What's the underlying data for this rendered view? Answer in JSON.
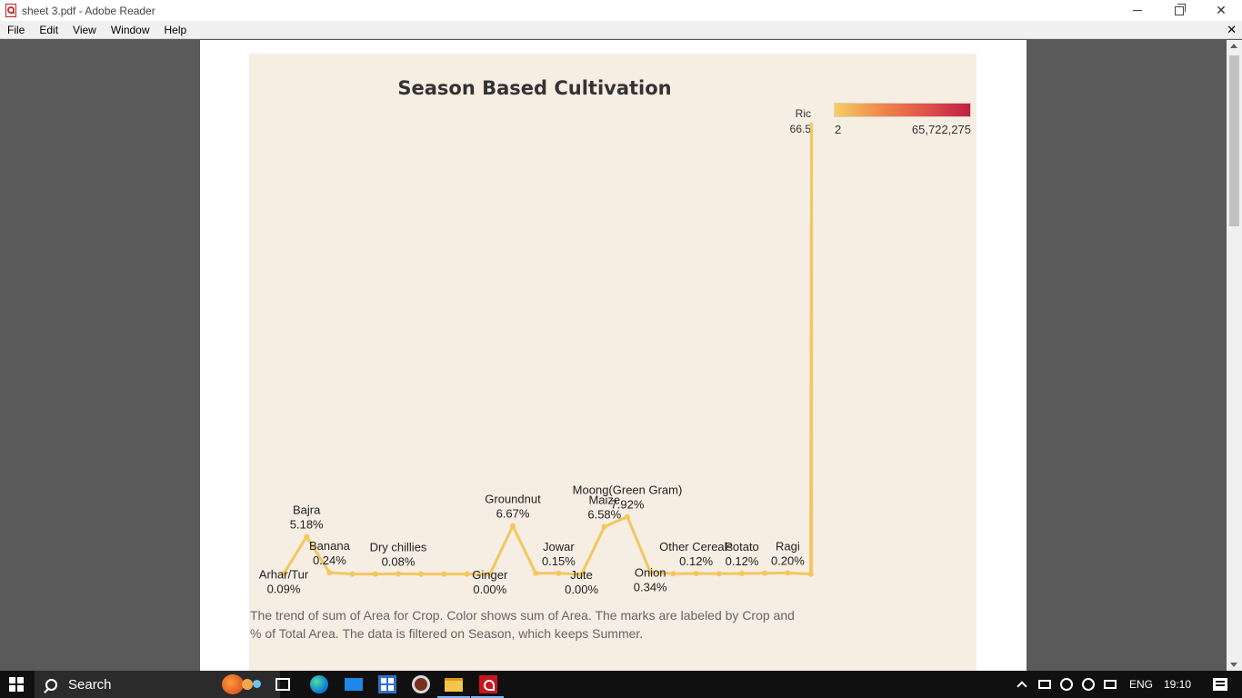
{
  "window": {
    "title": "sheet 3.pdf - Adobe Reader"
  },
  "menu": {
    "items": [
      "File",
      "Edit",
      "View",
      "Window",
      "Help"
    ]
  },
  "chart": {
    "legend_title": "Ric",
    "legend_value": "66.5",
    "legend_min": "2",
    "legend_max": "65,722,275",
    "colors": {
      "line": "#f3c75f",
      "background": "#f6ede3",
      "gradient_start": "#f4cf63",
      "gradient_end": "#c01e44"
    },
    "caption_line1": "The trend of sum of Area for Crop.  Color shows sum of Area.  The marks are labeled by Crop and",
    "caption_line2": "% of Total Area. The data is filtered on Season, which keeps Summer."
  },
  "chart_data": {
    "type": "line",
    "title": "Season Based Cultivation",
    "metric": "% of Total Area",
    "x": [
      "Arhar/Tur",
      "Bajra",
      "Banana",
      "",
      "",
      "Dry chillies",
      "",
      "",
      "",
      "Ginger",
      "Groundnut",
      "",
      "Jowar",
      "Jute",
      "Maize",
      "Moong(Green Gram)",
      "",
      "",
      "Other Cereals",
      "",
      "Potato",
      "",
      "Ragi",
      ""
    ],
    "y": [
      0.09,
      5.18,
      0.24,
      0.05,
      0.05,
      0.08,
      0.05,
      0.05,
      0.05,
      0.0,
      6.67,
      0.15,
      0.15,
      0.0,
      6.58,
      7.92,
      0.34,
      0.1,
      0.12,
      0.1,
      0.12,
      0.15,
      0.2,
      0.05
    ],
    "labels": [
      {
        "index": 0,
        "name": "Arhar/Tur",
        "value": "0.09%",
        "pos": "below"
      },
      {
        "index": 1,
        "name": "Bajra",
        "value": "5.18%",
        "pos": "above"
      },
      {
        "index": 2,
        "name": "Banana",
        "value": "0.24%",
        "pos": "above"
      },
      {
        "index": 5,
        "name": "Dry chillies",
        "value": "0.08%",
        "pos": "above"
      },
      {
        "index": 9,
        "name": "Ginger",
        "value": "0.00%",
        "pos": "below"
      },
      {
        "index": 10,
        "name": "Groundnut",
        "value": "6.67%",
        "pos": "above"
      },
      {
        "index": 12,
        "name": "Jowar",
        "value": "0.15%",
        "pos": "above"
      },
      {
        "index": 13,
        "name": "Jute",
        "value": "0.00%",
        "pos": "below"
      },
      {
        "index": 14,
        "name": "Maize",
        "value": "6.58%",
        "pos": "above"
      },
      {
        "index": 15,
        "name": "Moong(Green Gram)",
        "value": "7.92%",
        "pos": "above"
      },
      {
        "index": 16,
        "name": "Onion",
        "value": "0.34%",
        "pos": "below"
      },
      {
        "index": 18,
        "name": "Other Cereals",
        "value": "0.12%",
        "pos": "above"
      },
      {
        "index": 20,
        "name": "Potato",
        "value": "0.12%",
        "pos": "above"
      },
      {
        "index": 22,
        "name": "Ragi",
        "value": "0.20%",
        "pos": "above"
      }
    ],
    "tail_value": 62.0,
    "ylim": [
      0,
      70
    ],
    "grid": false,
    "legend": "top-right"
  },
  "taskbar": {
    "search_placeholder": "Search",
    "language": "ENG",
    "time": "19:10"
  },
  "icons": [
    "acrobat-icon",
    "minimize-icon",
    "restore-icon",
    "close-icon",
    "windows-start-icon",
    "search-icon",
    "task-view-icon",
    "edge-icon",
    "mail-icon",
    "store-icon",
    "media-player-icon",
    "file-explorer-icon",
    "acrobat-taskbar-icon",
    "notification-icon"
  ]
}
